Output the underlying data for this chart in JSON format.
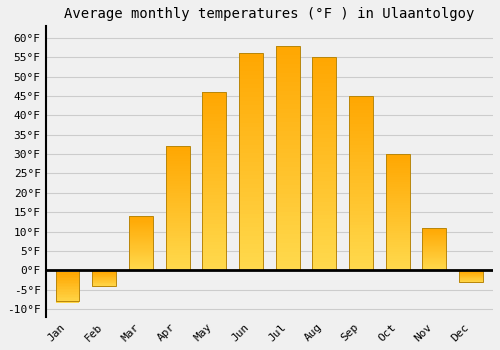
{
  "title": "Average monthly temperatures (°F ) in Ulaantolgoy",
  "months": [
    "Jan",
    "Feb",
    "Mar",
    "Apr",
    "May",
    "Jun",
    "Jul",
    "Aug",
    "Sep",
    "Oct",
    "Nov",
    "Dec"
  ],
  "values": [
    -8,
    -4,
    14,
    32,
    46,
    56,
    58,
    55,
    45,
    30,
    11,
    -3
  ],
  "bar_color_top": "#FFA500",
  "bar_color_bottom": "#FFD080",
  "bar_edge_color": "#B8860B",
  "ylim": [
    -12,
    63
  ],
  "yticks": [
    -10,
    -5,
    0,
    5,
    10,
    15,
    20,
    25,
    30,
    35,
    40,
    45,
    50,
    55,
    60
  ],
  "background_color": "#F0F0F0",
  "grid_color": "#CCCCCC",
  "title_fontsize": 10,
  "tick_fontsize": 8
}
